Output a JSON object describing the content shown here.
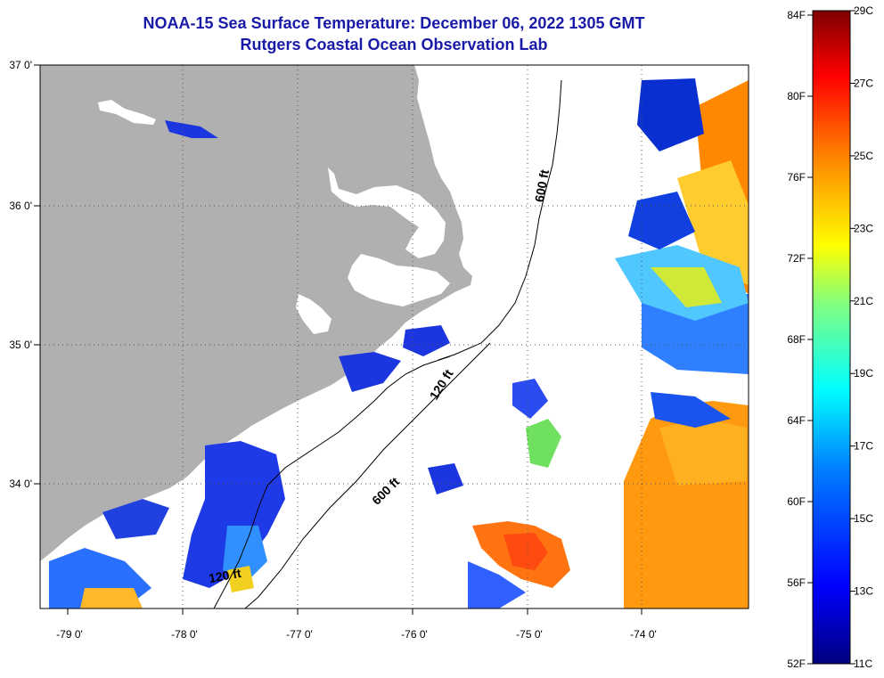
{
  "title": {
    "line1": "NOAA-15 Sea Surface Temperature:  December 06, 2022 1305 GMT",
    "line2": "Rutgers Coastal Ocean Observation Lab"
  },
  "map": {
    "lon_range": [
      -79.3,
      -73.0
    ],
    "lat_range": [
      33.2,
      37.0
    ],
    "lon_ticks": [
      {
        "value": -79,
        "label": "-79 0'"
      },
      {
        "value": -78,
        "label": "-78 0'"
      },
      {
        "value": -77,
        "label": "-77 0'"
      },
      {
        "value": -76,
        "label": "-76 0'"
      },
      {
        "value": -75,
        "label": "-75 0'"
      },
      {
        "value": -74,
        "label": "-74 0'"
      }
    ],
    "lat_ticks": [
      {
        "value": 37,
        "label": "37 0'"
      },
      {
        "value": 36,
        "label": "36 0'"
      },
      {
        "value": 35,
        "label": "35 0'"
      },
      {
        "value": 34,
        "label": "34 0'"
      }
    ],
    "contour_labels": [
      {
        "text": "600 ft",
        "lon": -74.8,
        "lat": 36.15,
        "angle": -80
      },
      {
        "text": "120 ft",
        "lon": -75.7,
        "lat": 34.75,
        "angle": -58
      },
      {
        "text": "600 ft",
        "lon": -76.2,
        "lat": 34.0,
        "angle": -45
      },
      {
        "text": "120 ft",
        "lon": -77.65,
        "lat": 33.4,
        "angle": -10
      }
    ],
    "colors": {
      "land": "#b0b0b0",
      "ocean": "#ffffff",
      "contour": "#000000",
      "grid": "#555555"
    }
  },
  "colorbar": {
    "range_c": [
      11,
      29
    ],
    "fahrenheit_labels": [
      "84F",
      "80F",
      "76F",
      "72F",
      "68F",
      "64F",
      "60F",
      "56F",
      "52F"
    ],
    "celsius_labels": [
      "29C",
      "27C",
      "25C",
      "23C",
      "21C",
      "19C",
      "17C",
      "15C",
      "13C",
      "11C"
    ],
    "color_stops": [
      "#00007f",
      "#0000ff",
      "#0080ff",
      "#00ffff",
      "#80ff80",
      "#ffff00",
      "#ff8000",
      "#ff0000",
      "#7f0000"
    ]
  }
}
